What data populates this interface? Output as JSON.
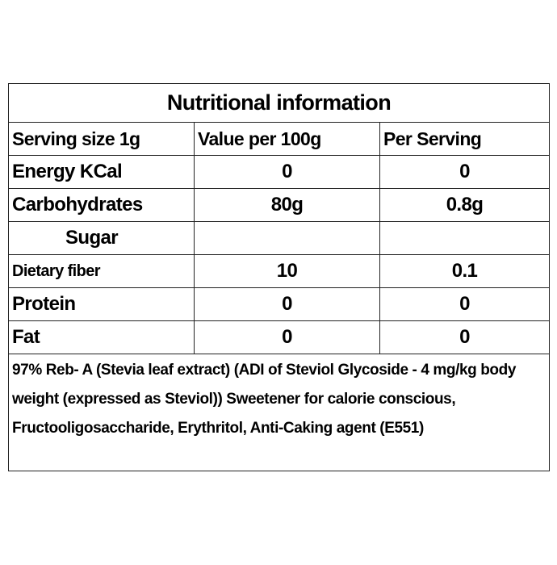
{
  "table": {
    "title": "Nutritional information",
    "header": [
      "Serving size 1g",
      "Value per 100g",
      "Per Serving"
    ],
    "rows": [
      [
        "Energy KCal",
        "0",
        "0"
      ],
      [
        "Carbohydrates",
        "80g",
        "0.8g"
      ],
      [
        "Sugar"
      ],
      [
        "Dietary fiber",
        "10",
        "0.1"
      ],
      [
        "Protein",
        "0",
        "0"
      ],
      [
        "Fat",
        "0",
        "0"
      ]
    ],
    "note": "97% Reb- A (Stevia leaf extract) (ADI of Steviol Glycoside - 4 mg/kg body weight (expressed as Steviol)) Sweetener for calorie conscious, Fructooligosaccharide, Erythritol, Anti-Caking agent (E551)"
  }
}
